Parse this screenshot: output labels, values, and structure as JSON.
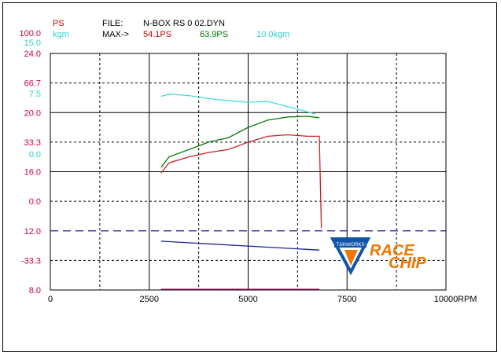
{
  "header": {
    "ps_unit": "PS",
    "kgm_unit": "kgm",
    "file_label": "FILE:",
    "file_name": "N-BOX  RS 0 02.DYN",
    "max_label": "MAX->",
    "max_ps_a": "54.1PS",
    "max_ps_b": "63.9PS",
    "max_kgm": "10.0kgm"
  },
  "axes": {
    "ps_top": "100.0",
    "kgm_top": "15.0",
    "x_unit": "RPM"
  },
  "logo": {
    "badge_text": "T.MAWORKS",
    "brand_line1": "RACE",
    "brand_line2": "CHIP"
  },
  "colors": {
    "ps_label": "#cc0000",
    "kgm_label": "#33cccc",
    "axis_label": "#cc0033",
    "series_red": "#cc2222",
    "series_green": "#007700",
    "series_cyan": "#44dddd",
    "series_blue": "#222299",
    "baseline": "#880044",
    "brand_orange": "#ee7700",
    "brand_blue": "#1155aa"
  },
  "chart_data": {
    "type": "line",
    "x_label": "RPM",
    "xlim": [
      0,
      10000
    ],
    "x_ticks": [
      "0",
      "2500",
      "5000",
      "7500",
      "10000"
    ],
    "left_axis_labels": [
      {
        "text": "24.0",
        "color": "#cc0044"
      },
      {
        "text": "66.7",
        "color": "#cc0044"
      },
      {
        "text": "7.5",
        "color": "#33cccc"
      },
      {
        "text": "20.0",
        "color": "#cc0044"
      },
      {
        "text": "33.3",
        "color": "#cc0044"
      },
      {
        "text": "0.0",
        "color": "#33cccc"
      },
      {
        "text": "16.0",
        "color": "#cc0044"
      },
      {
        "text": "0.0",
        "color": "#cc0044"
      },
      {
        "text": "12.0",
        "color": "#cc0044"
      },
      {
        "text": "-33.3",
        "color": "#cc0044"
      },
      {
        "text": "8.0",
        "color": "#cc0044"
      }
    ],
    "y_scale_note": "grid spans 8.0 (bottom) to 24.0 (top) on the primary scale",
    "ylim": [
      8,
      24
    ],
    "series": [
      {
        "color": "#44dddd",
        "x": [
          2800,
          3000,
          3500,
          4000,
          4500,
          5000,
          5500,
          6000,
          6500,
          6700
        ],
        "y": [
          21.1,
          21.25,
          21.15,
          20.95,
          20.8,
          20.7,
          20.75,
          20.4,
          20.05,
          19.9
        ]
      },
      {
        "color": "#007700",
        "x": [
          2800,
          3000,
          3500,
          4000,
          4500,
          5000,
          5500,
          6000,
          6500,
          6800
        ],
        "y": [
          16.3,
          17.0,
          17.5,
          18.0,
          18.3,
          19.0,
          19.5,
          19.7,
          19.75,
          19.65
        ]
      },
      {
        "color": "#cc2222",
        "x": [
          2800,
          3000,
          3500,
          4000,
          4500,
          5000,
          5500,
          6000,
          6500,
          6800,
          6850
        ],
        "y": [
          15.9,
          16.6,
          17.0,
          17.3,
          17.5,
          18.0,
          18.4,
          18.5,
          18.4,
          18.4,
          12.2
        ]
      },
      {
        "color": "#222299",
        "x": [
          2800,
          6800
        ],
        "y": [
          11.3,
          10.7
        ]
      },
      {
        "color": "#880044",
        "x": [
          2800,
          6800
        ],
        "y": [
          8.05,
          8.05
        ]
      }
    ],
    "reference_line": {
      "y": 12.0,
      "style": "dashed",
      "color": "#1a1a88"
    },
    "grid": "major solid, minor dashed"
  }
}
